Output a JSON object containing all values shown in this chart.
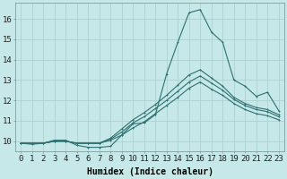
{
  "xlabel": "Humidex (Indice chaleur)",
  "xlim": [
    -0.5,
    23.5
  ],
  "ylim": [
    9.5,
    16.8
  ],
  "background_color": "#c6e8e8",
  "grid_color": "#a8cece",
  "line_color": "#2e7070",
  "series": [
    [
      9.9,
      9.85,
      9.9,
      10.05,
      10.05,
      9.8,
      9.7,
      9.7,
      9.75,
      10.3,
      10.85,
      10.9,
      11.3,
      13.3,
      14.85,
      16.3,
      16.45,
      15.35,
      14.85,
      13.0,
      12.7,
      12.2,
      12.4,
      11.5
    ],
    [
      9.9,
      9.9,
      9.9,
      10.0,
      10.0,
      9.9,
      9.9,
      9.9,
      10.05,
      10.3,
      10.65,
      10.95,
      11.35,
      11.75,
      12.15,
      12.6,
      12.9,
      12.55,
      12.25,
      11.85,
      11.55,
      11.35,
      11.25,
      11.05
    ],
    [
      9.9,
      9.9,
      9.9,
      10.0,
      10.0,
      9.9,
      9.9,
      9.9,
      10.1,
      10.45,
      10.9,
      11.2,
      11.6,
      12.0,
      12.45,
      12.9,
      13.2,
      12.85,
      12.5,
      12.05,
      11.75,
      11.55,
      11.45,
      11.2
    ],
    [
      9.9,
      9.9,
      9.9,
      10.0,
      10.0,
      9.9,
      9.9,
      9.9,
      10.15,
      10.6,
      11.05,
      11.4,
      11.8,
      12.25,
      12.75,
      13.25,
      13.5,
      13.1,
      12.7,
      12.15,
      11.85,
      11.65,
      11.55,
      11.3
    ]
  ],
  "xtick_labels": [
    "0",
    "1",
    "2",
    "3",
    "4",
    "5",
    "6",
    "7",
    "8",
    "9",
    "10",
    "11",
    "12",
    "13",
    "14",
    "15",
    "16",
    "17",
    "18",
    "19",
    "20",
    "21",
    "22",
    "23"
  ],
  "ytick_values": [
    10,
    11,
    12,
    13,
    14,
    15,
    16
  ],
  "ytick_labels": [
    "10",
    "11",
    "12",
    "13",
    "14",
    "15",
    "16"
  ],
  "xlabel_fontsize": 7,
  "tick_fontsize": 6.5,
  "linewidth": 0.8,
  "markersize": 2.0,
  "fig_width": 3.2,
  "fig_height": 2.0,
  "dpi": 100
}
